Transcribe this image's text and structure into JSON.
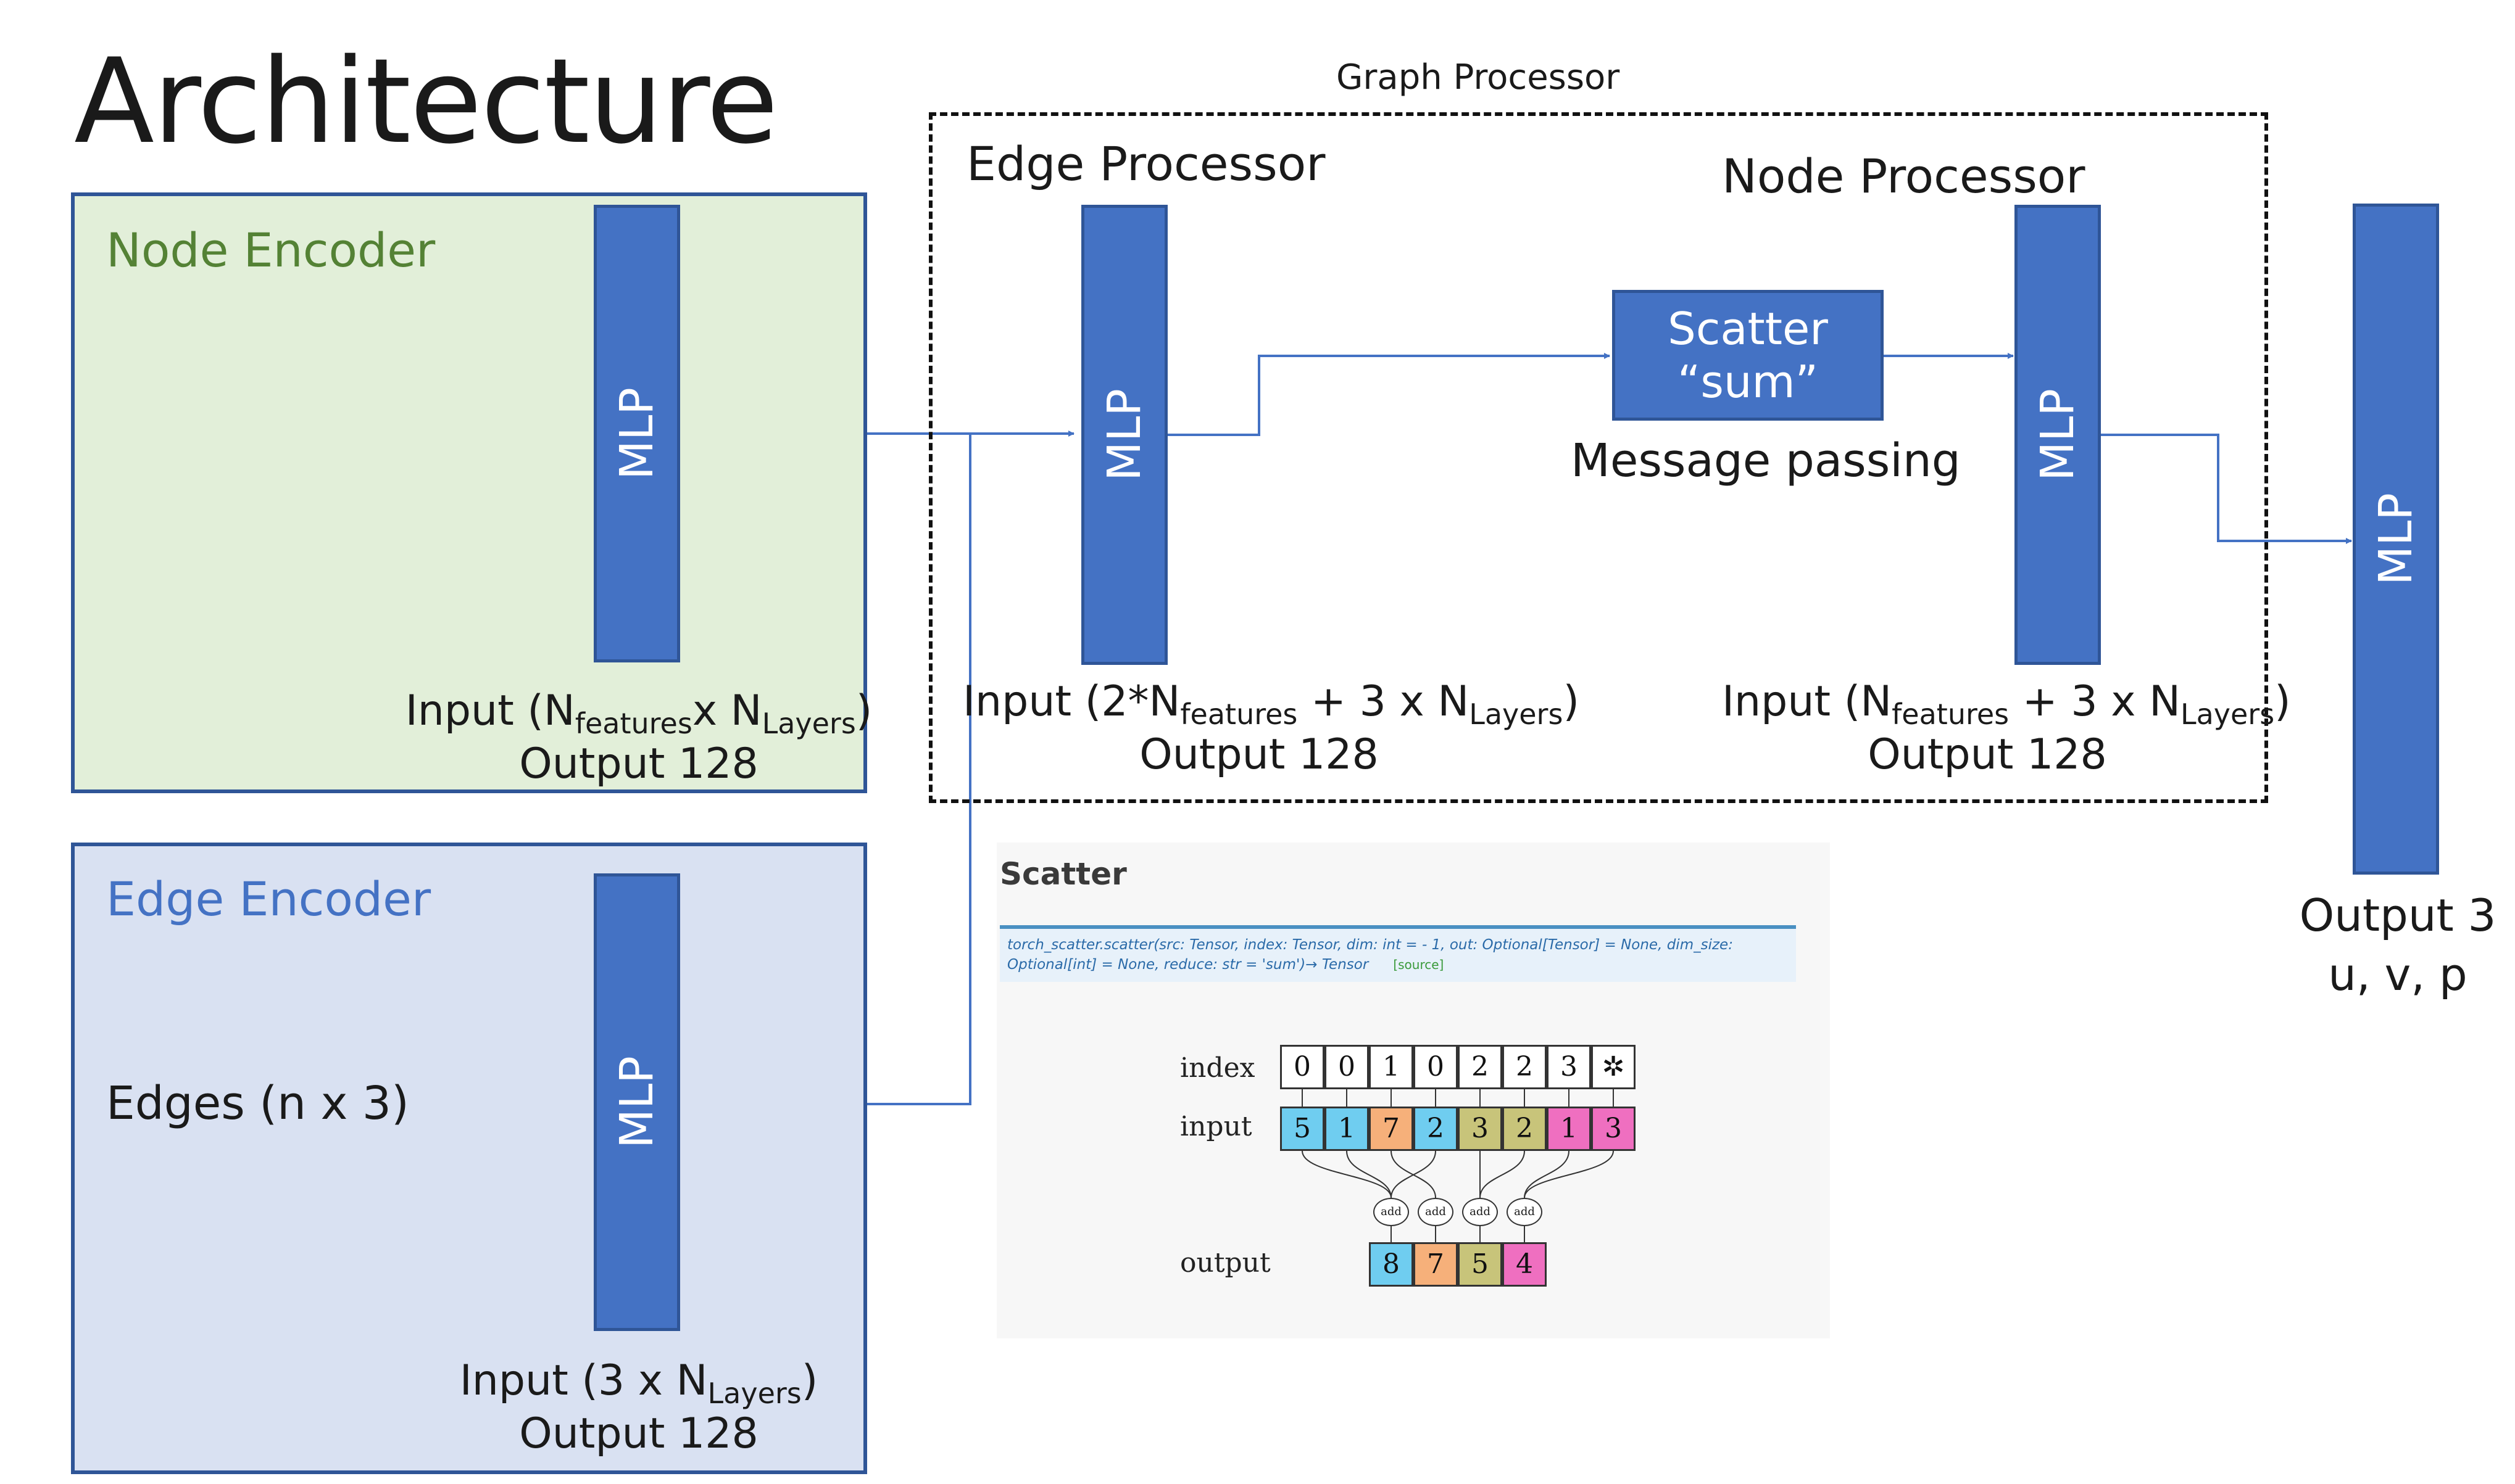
{
  "title": "Architecture",
  "node_encoder": {
    "label": "Node Encoder",
    "mlp_label": "MLP",
    "input_prefix": "Input (N",
    "input_sub1": "features",
    "input_mid": "x N",
    "input_sub2": "Layers",
    "input_suffix": ")",
    "output": "Output 128"
  },
  "edge_encoder": {
    "label": "Edge Encoder",
    "edges_text": "Edges (n x 3)",
    "mlp_label": "MLP",
    "input_prefix": "Input (3 x N",
    "input_sub": "Layers",
    "input_suffix": ")",
    "output": "Output 128"
  },
  "graph_processor": {
    "label": "Graph Processor",
    "edge_processor": {
      "label": "Edge Processor",
      "mlp_label": "MLP",
      "input_prefix": "Input (2*N",
      "input_sub1": "features",
      "input_mid": " + 3 x N",
      "input_sub2": "Layers",
      "input_suffix": ")",
      "output": "Output 128"
    },
    "scatter": {
      "line1": "Scatter",
      "line2": "“sum”",
      "caption": "Message passing"
    },
    "node_processor": {
      "label": "Node Processor",
      "mlp_label": "MLP",
      "input_prefix": "Input (N",
      "input_sub1": "features",
      "input_mid": " + 3 x N",
      "input_sub2": "Layers",
      "input_suffix": ")",
      "output": "Output 128"
    }
  },
  "decoder": {
    "mlp_label": "MLP",
    "output_line1": "Output 3",
    "output_line2": "u, v, p"
  },
  "scatter_doc": {
    "heading": "Scatter",
    "signature_line1": "torch_scatter.scatter(src: Tensor, index: Tensor, dim: int = - 1, out: Optional[Tensor] = None, dim_size:",
    "signature_line2": "Optional[int] = None, reduce: str = 'sum')→ Tensor",
    "source_link": "[source]",
    "index_label": "index",
    "input_label": "input",
    "output_label": "output",
    "add_label": "add",
    "index_values": [
      "0",
      "0",
      "1",
      "0",
      "2",
      "2",
      "3",
      "✲"
    ],
    "input_values": [
      "5",
      "1",
      "7",
      "2",
      "3",
      "2",
      "1",
      "3"
    ],
    "output_values": [
      "8",
      "7",
      "5",
      "4"
    ],
    "colors": {
      "blue": "#6fcdf0",
      "orange": "#f6b07a",
      "olive": "#c8c47a",
      "pink": "#ef6fc0"
    }
  },
  "colors": {
    "mlp_fill": "#4472c4",
    "node_encoder_bg": "#e2efd9",
    "edge_encoder_bg": "#d9e1f2",
    "node_label": "#548235",
    "edge_label": "#4472c4"
  }
}
